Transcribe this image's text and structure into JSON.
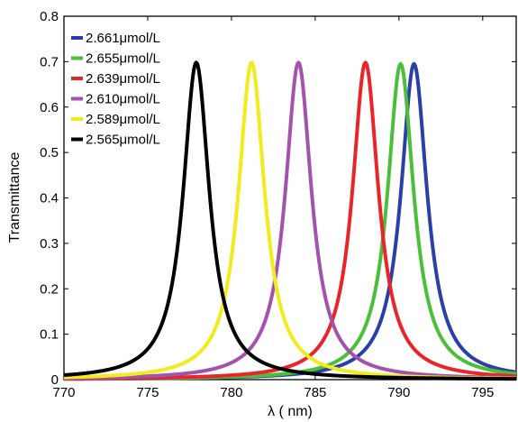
{
  "chart_data": {
    "type": "line",
    "title": "",
    "xlabel": "λ ( nm)",
    "ylabel": "Transmittance",
    "xlim": [
      770,
      797
    ],
    "ylim": [
      0,
      0.8
    ],
    "xticks": [
      770,
      775,
      780,
      785,
      790,
      795
    ],
    "yticks": [
      0,
      0.1,
      0.2,
      0.3,
      0.4,
      0.5,
      0.6,
      0.7,
      0.8
    ],
    "grid": false,
    "legend_position": "top-left",
    "series": [
      {
        "name": "2.661μmol/L",
        "color": "#2b3fa8",
        "peak_x": 790.9,
        "peak_y": 0.695,
        "half_width": 0.95
      },
      {
        "name": "2.655μmol/L",
        "color": "#4cbf3a",
        "peak_x": 790.1,
        "peak_y": 0.695,
        "half_width": 0.95
      },
      {
        "name": "2.639μmol/L",
        "color": "#e8262a",
        "peak_x": 788.0,
        "peak_y": 0.698,
        "half_width": 0.95
      },
      {
        "name": "2.610μmol/L",
        "color": "#a352ad",
        "peak_x": 784.0,
        "peak_y": 0.698,
        "half_width": 0.95
      },
      {
        "name": "2.589μmol/L",
        "color": "#f2ec1c",
        "peak_x": 781.2,
        "peak_y": 0.698,
        "half_width": 0.95
      },
      {
        "name": "2.565μmol/L",
        "color": "#000000",
        "peak_x": 777.9,
        "peak_y": 0.698,
        "half_width": 0.95
      }
    ]
  }
}
